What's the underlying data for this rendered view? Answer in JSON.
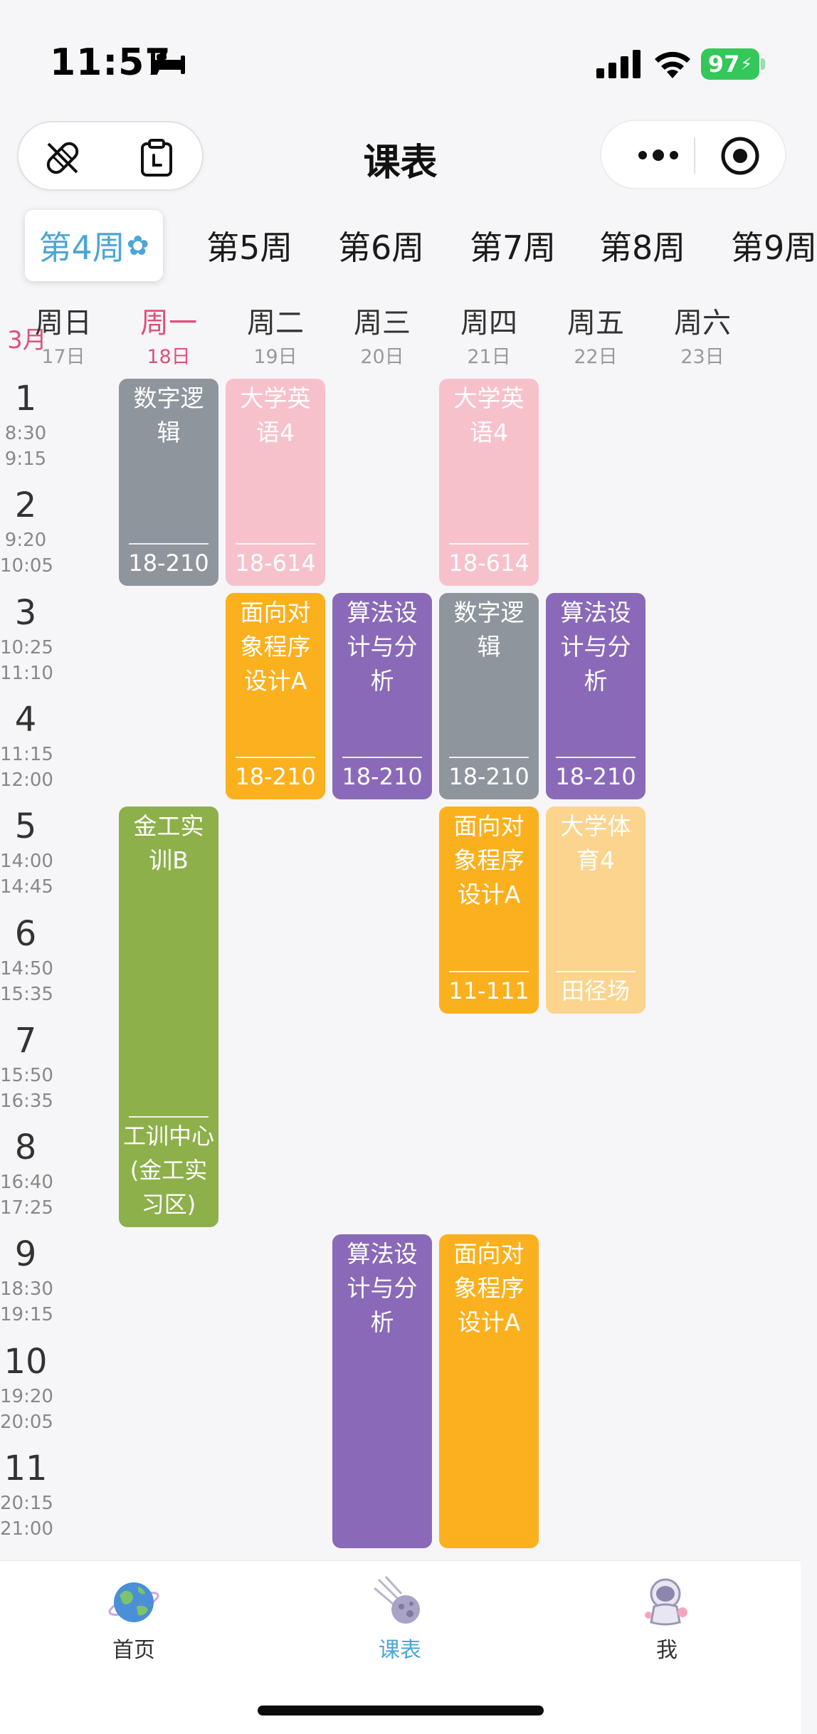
{
  "status_bar": {
    "time": "11:57",
    "battery": "97"
  },
  "nav": {
    "title": "课表"
  },
  "week_tabs": [
    {
      "label": "第4周",
      "active": true,
      "flower": "✿"
    },
    {
      "label": "第5周"
    },
    {
      "label": "第6周"
    },
    {
      "label": "第7周"
    },
    {
      "label": "第8周"
    },
    {
      "label": "第9周"
    }
  ],
  "month": "3月",
  "days": [
    {
      "name": "周日",
      "date": "17日"
    },
    {
      "name": "周一",
      "date": "18日",
      "today": true
    },
    {
      "name": "周二",
      "date": "19日"
    },
    {
      "name": "周三",
      "date": "20日"
    },
    {
      "name": "周四",
      "date": "21日"
    },
    {
      "name": "周五",
      "date": "22日"
    },
    {
      "name": "周六",
      "date": "23日"
    }
  ],
  "periods": [
    {
      "num": "1",
      "start": "8:30",
      "end": "9:15"
    },
    {
      "num": "2",
      "start": "9:20",
      "end": "10:05"
    },
    {
      "num": "3",
      "start": "10:25",
      "end": "11:10"
    },
    {
      "num": "4",
      "start": "11:15",
      "end": "12:00"
    },
    {
      "num": "5",
      "start": "14:00",
      "end": "14:45"
    },
    {
      "num": "6",
      "start": "14:50",
      "end": "15:35"
    },
    {
      "num": "7",
      "start": "15:50",
      "end": "16:35"
    },
    {
      "num": "8",
      "start": "16:40",
      "end": "17:25"
    },
    {
      "num": "9",
      "start": "18:30",
      "end": "19:15"
    },
    {
      "num": "10",
      "start": "19:20",
      "end": "20:05"
    },
    {
      "num": "11",
      "start": "20:15",
      "end": "21:00"
    }
  ],
  "courses": [
    {
      "name": "数字逻辑",
      "location": "18-210",
      "day": 1,
      "start": 1,
      "span": 2,
      "color": "#8f959c"
    },
    {
      "name": "大学英语4",
      "location": "18-614",
      "day": 2,
      "start": 1,
      "span": 2,
      "color": "#f7c1cc"
    },
    {
      "name": "大学英语4",
      "location": "18-614",
      "day": 4,
      "start": 1,
      "span": 2,
      "color": "#f7c1cc"
    },
    {
      "name": "面向对象程序设计A",
      "location": "18-210",
      "day": 2,
      "start": 3,
      "span": 2,
      "color": "#fbb01e"
    },
    {
      "name": "算法设计与分析",
      "location": "18-210",
      "day": 3,
      "start": 3,
      "span": 2,
      "color": "#8a6ab8"
    },
    {
      "name": "数字逻辑",
      "location": "18-210",
      "day": 4,
      "start": 3,
      "span": 2,
      "color": "#8f959c"
    },
    {
      "name": "算法设计与分析",
      "location": "18-210",
      "day": 5,
      "start": 3,
      "span": 2,
      "color": "#8a6ab8"
    },
    {
      "name": "金工实训B",
      "location": "工训中心(金工实习区)",
      "day": 1,
      "start": 5,
      "span": 4,
      "color": "#8db04a"
    },
    {
      "name": "面向对象程序设计A",
      "location": "11-111",
      "day": 4,
      "start": 5,
      "span": 2,
      "color": "#fbb01e"
    },
    {
      "name": "大学体育4",
      "location": "田径场",
      "day": 5,
      "start": 5,
      "span": 2,
      "color": "#fcd48e"
    },
    {
      "name": "算法设计与分析",
      "location": "",
      "day": 3,
      "start": 9,
      "span": 3,
      "color": "#8a6ab8"
    },
    {
      "name": "面向对象程序设计A",
      "location": "",
      "day": 4,
      "start": 9,
      "span": 3,
      "color": "#fbb01e"
    }
  ],
  "tab_bar": [
    {
      "label": "首页",
      "icon": "globe-icon"
    },
    {
      "label": "课表",
      "icon": "comet-icon",
      "active": true
    },
    {
      "label": "我",
      "icon": "astronaut-icon"
    }
  ]
}
